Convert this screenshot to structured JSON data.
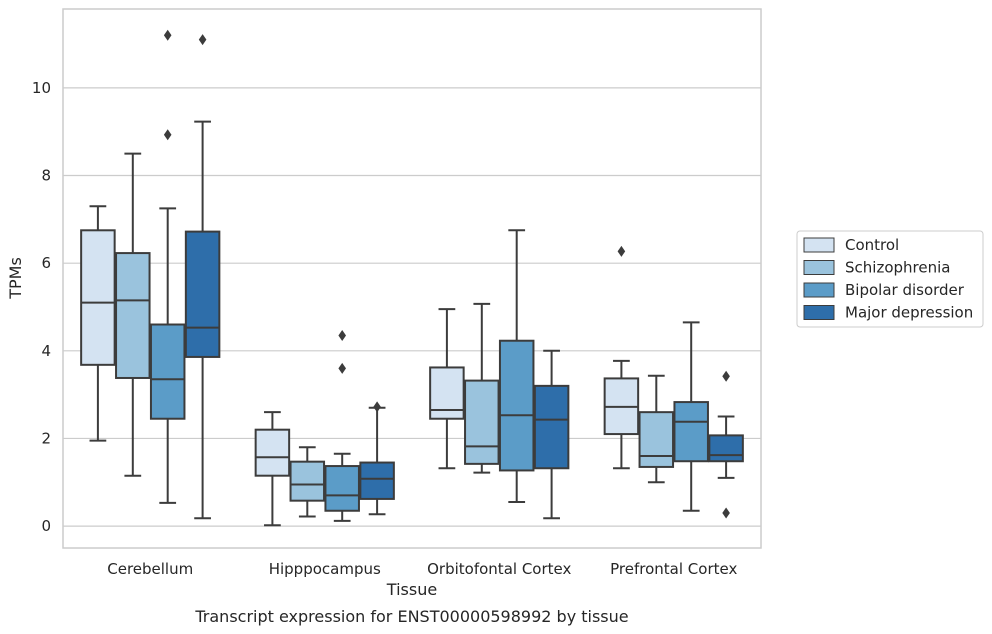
{
  "chart_data": {
    "type": "box",
    "title": "Transcript expression for ENST00000598992 by tissue",
    "xlabel": "Tissue",
    "ylabel": "TPMs",
    "ylim": [
      -0.5,
      11.8
    ],
    "yticks": [
      0,
      2,
      4,
      6,
      8,
      10
    ],
    "grid": "horizontal",
    "legend_position": "right",
    "categories": [
      "Cerebellum",
      "Hipppocampus",
      "Orbitofontal Cortex",
      "Prefrontal Cortex"
    ],
    "series": [
      {
        "name": "Control",
        "color": "#d4e3f2",
        "boxes": [
          {
            "whislo": 1.95,
            "q1": 3.68,
            "med": 5.1,
            "q3": 6.75,
            "whishi": 7.3,
            "fliers": []
          },
          {
            "whislo": 0.02,
            "q1": 1.15,
            "med": 1.57,
            "q3": 2.2,
            "whishi": 2.6,
            "fliers": []
          },
          {
            "whislo": 1.32,
            "q1": 2.45,
            "med": 2.65,
            "q3": 3.62,
            "whishi": 4.95,
            "fliers": []
          },
          {
            "whislo": 1.32,
            "q1": 2.1,
            "med": 2.72,
            "q3": 3.37,
            "whishi": 3.77,
            "fliers": [
              6.27
            ]
          }
        ]
      },
      {
        "name": "Schizophrenia",
        "color": "#9ac3dd",
        "boxes": [
          {
            "whislo": 1.15,
            "q1": 3.38,
            "med": 5.15,
            "q3": 6.23,
            "whishi": 8.5,
            "fliers": []
          },
          {
            "whislo": 0.22,
            "q1": 0.58,
            "med": 0.95,
            "q3": 1.47,
            "whishi": 1.8,
            "fliers": []
          },
          {
            "whislo": 1.22,
            "q1": 1.42,
            "med": 1.82,
            "q3": 3.32,
            "whishi": 5.07,
            "fliers": []
          },
          {
            "whislo": 1.0,
            "q1": 1.35,
            "med": 1.6,
            "q3": 2.6,
            "whishi": 3.43,
            "fliers": []
          }
        ]
      },
      {
        "name": "Bipolar disorder",
        "color": "#5b9cc8",
        "boxes": [
          {
            "whislo": 0.53,
            "q1": 2.45,
            "med": 3.35,
            "q3": 4.6,
            "whishi": 7.25,
            "fliers": [
              8.93,
              11.2
            ]
          },
          {
            "whislo": 0.12,
            "q1": 0.35,
            "med": 0.7,
            "q3": 1.37,
            "whishi": 1.65,
            "fliers": [
              3.6,
              4.35
            ]
          },
          {
            "whislo": 0.55,
            "q1": 1.27,
            "med": 2.53,
            "q3": 4.23,
            "whishi": 6.75,
            "fliers": []
          },
          {
            "whislo": 0.35,
            "q1": 1.48,
            "med": 2.38,
            "q3": 2.83,
            "whishi": 4.65,
            "fliers": []
          }
        ]
      },
      {
        "name": "Major depression",
        "color": "#2e6eaa",
        "boxes": [
          {
            "whislo": 0.18,
            "q1": 3.86,
            "med": 4.53,
            "q3": 6.72,
            "whishi": 9.23,
            "fliers": [
              11.1
            ]
          },
          {
            "whislo": 0.27,
            "q1": 0.62,
            "med": 1.08,
            "q3": 1.45,
            "whishi": 2.7,
            "fliers": [
              2.72
            ]
          },
          {
            "whislo": 0.18,
            "q1": 1.32,
            "med": 2.43,
            "q3": 3.2,
            "whishi": 4.0,
            "fliers": []
          },
          {
            "whislo": 1.1,
            "q1": 1.48,
            "med": 1.62,
            "q3": 2.07,
            "whishi": 2.5,
            "fliers": [
              3.42,
              0.3
            ]
          }
        ]
      }
    ]
  }
}
